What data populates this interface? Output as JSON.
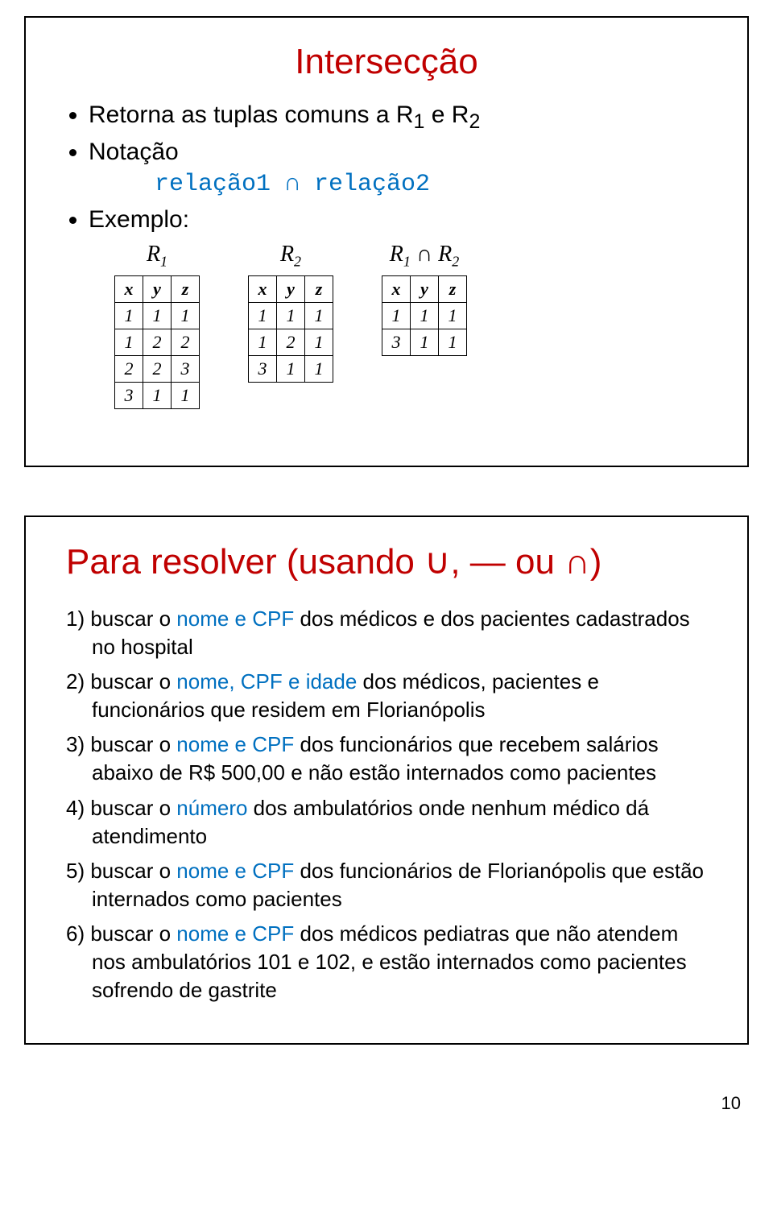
{
  "page_number": "10",
  "slide1": {
    "title": "Intersecção",
    "bullet1_pre": "Retorna as tuplas comuns a R",
    "bullet1_sub1": "1",
    "bullet1_mid": " e R",
    "bullet1_sub2": "2",
    "bullet2": "Notação",
    "notation": "relação1  ∩  relação2",
    "bullet3": "Exemplo:",
    "table_labels": {
      "r1": "R",
      "r1_sub": "1",
      "r2": "R",
      "r2_sub": "2",
      "r3a": "R",
      "r3a_sub": "1",
      "r3_op": " ∩ ",
      "r3b": "R",
      "r3b_sub": "2"
    },
    "headers": [
      "x",
      "y",
      "z"
    ],
    "t1": [
      [
        "1",
        "1",
        "1"
      ],
      [
        "1",
        "2",
        "2"
      ],
      [
        "2",
        "2",
        "3"
      ],
      [
        "3",
        "1",
        "1"
      ]
    ],
    "t2": [
      [
        "1",
        "1",
        "1"
      ],
      [
        "1",
        "2",
        "1"
      ],
      [
        "3",
        "1",
        "1"
      ]
    ],
    "t3": [
      [
        "1",
        "1",
        "1"
      ],
      [
        "3",
        "1",
        "1"
      ]
    ]
  },
  "slide2": {
    "title": "Para resolver (usando ∪, ― ou ∩)",
    "items": [
      {
        "n": "1) buscar o ",
        "kw": "nome e CPF",
        "rest": " dos médicos e dos pacientes cadastrados no hospital"
      },
      {
        "n": "2) buscar o ",
        "kw": "nome, CPF e idade",
        "rest": " dos médicos, pacientes e funcionários que residem em Florianópolis"
      },
      {
        "n": "3) buscar o ",
        "kw": "nome e CPF",
        "rest": " dos funcionários que recebem salários abaixo de R$ 500,00 e não estão internados como pacientes"
      },
      {
        "n": "4) buscar o ",
        "kw": "número",
        "rest": " dos ambulatórios onde nenhum médico dá atendimento"
      },
      {
        "n": "5) buscar o ",
        "kw": "nome e CPF",
        "rest": " dos funcionários de Florianópolis que estão internados como pacientes"
      },
      {
        "n": "6)  buscar o ",
        "kw": "nome e CPF",
        "rest": " dos médicos pediatras que não atendem nos ambulatórios 101 e 102, e estão internados como pacientes sofrendo de gastrite"
      }
    ]
  }
}
